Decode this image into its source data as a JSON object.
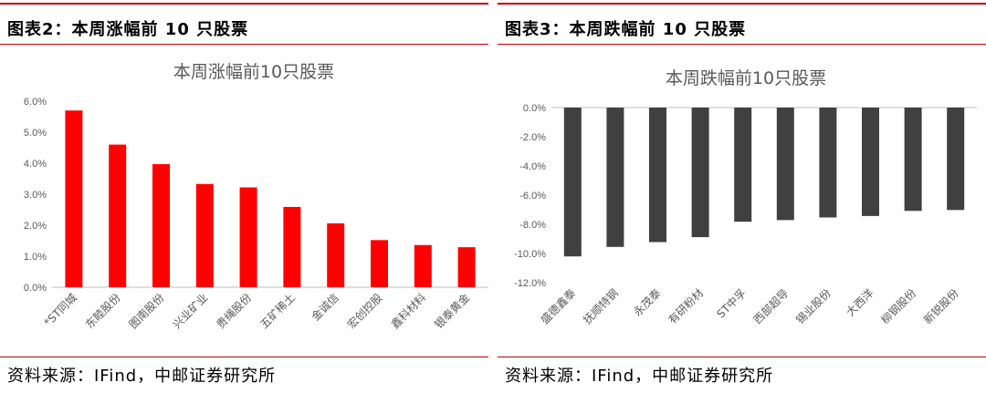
{
  "left": {
    "panel_title": "图表2：本周涨幅前 10 只股票",
    "source": "资料来源：IFind，中邮证券研究所"
  },
  "right": {
    "panel_title": "图表3：本周跌幅前 10 只股票",
    "source": "资料来源：IFind，中邮证券研究所"
  },
  "colors": {
    "accent": "#c00000",
    "gain_bar": "#ff0000",
    "loss_bar": "#404040",
    "axis_text": "#595959"
  },
  "chart_data": [
    {
      "type": "bar",
      "title": "本周涨幅前10只股票",
      "categories": [
        "*ST同城",
        "东睦股份",
        "图南股份",
        "兴业矿业",
        "贵绳股份",
        "五矿稀土",
        "金诚信",
        "宏创控股",
        "鑫科材料",
        "银泰黄金"
      ],
      "values": [
        0.057,
        0.046,
        0.0397,
        0.0333,
        0.0322,
        0.0259,
        0.0206,
        0.0152,
        0.0136,
        0.0129
      ],
      "ylim": [
        0,
        0.06
      ],
      "yticks": [
        "0.0%",
        "1.0%",
        "2.0%",
        "3.0%",
        "4.0%",
        "5.0%",
        "6.0%"
      ],
      "grid": false,
      "xlabel": "",
      "ylabel": ""
    },
    {
      "type": "bar",
      "title": "本周跌幅前10只股票",
      "categories": [
        "盛德鑫泰",
        "抚顺特钢",
        "永茂泰",
        "有研粉材",
        "ST中孚",
        "西部超导",
        "锡业股份",
        "大西洋",
        "柳钢股份",
        "新锐股份"
      ],
      "values": [
        -0.102,
        -0.0955,
        -0.0922,
        -0.0888,
        -0.0782,
        -0.0771,
        -0.0753,
        -0.0743,
        -0.0708,
        -0.0702
      ],
      "ylim": [
        -0.12,
        0
      ],
      "yticks": [
        "0.0%",
        "-2.0%",
        "-4.0%",
        "-6.0%",
        "-8.0%",
        "-10.0%",
        "-12.0%"
      ],
      "grid": false,
      "xlabel": "",
      "ylabel": ""
    }
  ]
}
